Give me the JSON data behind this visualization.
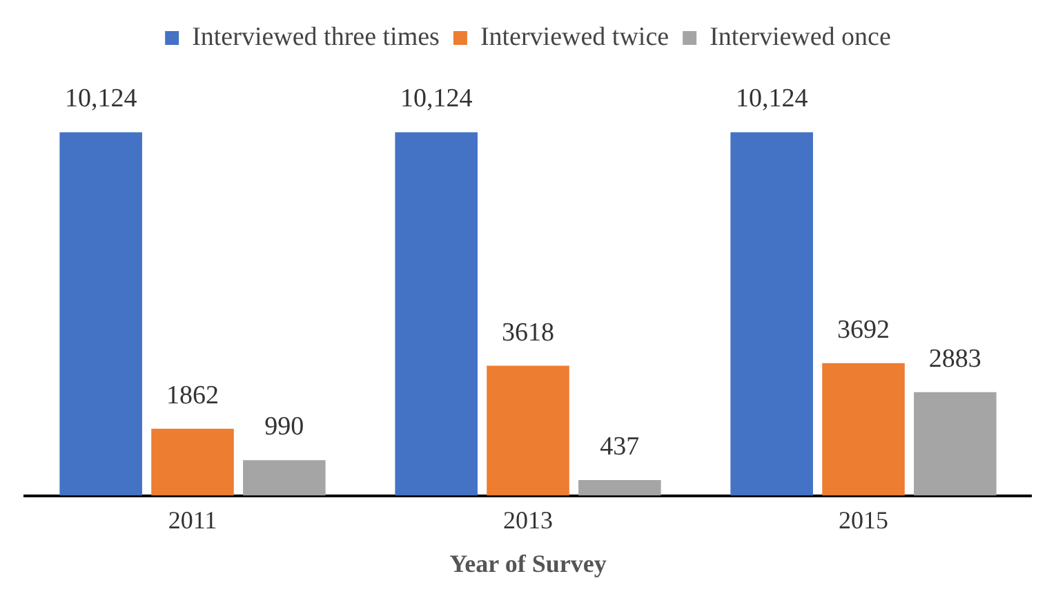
{
  "chart_data": {
    "type": "bar",
    "xlabel": "Year of Survey",
    "categories": [
      "2011",
      "2013",
      "2015"
    ],
    "series": [
      {
        "name": "Interviewed three times",
        "color": "#4472c4",
        "values": [
          10124,
          10124,
          10124
        ],
        "value_labels": [
          "10,124",
          "10,124",
          "10,124"
        ]
      },
      {
        "name": "Interviewed twice",
        "color": "#ed7d31",
        "values": [
          1862,
          3618,
          3692
        ],
        "value_labels": [
          "1862",
          "3618",
          "3692"
        ]
      },
      {
        "name": "Interviewed once",
        "color": "#a5a5a5",
        "values": [
          990,
          437,
          2883
        ],
        "value_labels": [
          "990",
          "437",
          "2883"
        ]
      }
    ],
    "legend": "top",
    "grid": false
  }
}
